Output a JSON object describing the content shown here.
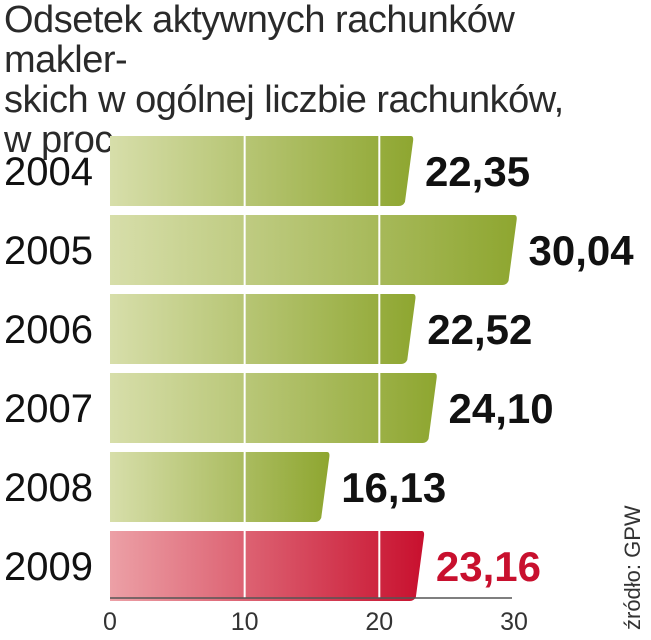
{
  "chart_data": {
    "type": "bar",
    "orientation": "horizontal",
    "title": "Odsetek aktywnych rachunków makler-skich w ogólnej liczbie rachunków, w proc.",
    "title_lines": [
      "Odsetek aktywnych rachunków makler-",
      "skich w ogólnej liczbie rachunków,",
      "w proc."
    ],
    "categories": [
      "2004",
      "2005",
      "2006",
      "2007",
      "2008",
      "2009"
    ],
    "values": [
      22.35,
      30.04,
      22.52,
      24.1,
      16.13,
      23.16
    ],
    "value_labels": [
      "22,35",
      "30,04",
      "22,52",
      "24,10",
      "16,13",
      "23,16"
    ],
    "highlight_index": 5,
    "xlim": [
      0,
      30
    ],
    "x_ticks": [
      0,
      10,
      20,
      30
    ],
    "x_tick_labels": [
      "0",
      "10",
      "20",
      "30"
    ],
    "grid": true,
    "source": "źródło: GPW",
    "colors": {
      "bar_light": "#d4dc9c",
      "bar_dark": "#8ba22e",
      "highlight_light": "#e88a94",
      "highlight_dark": "#c8102e",
      "highlight_text": "#c8102e",
      "text": "#111111"
    }
  }
}
